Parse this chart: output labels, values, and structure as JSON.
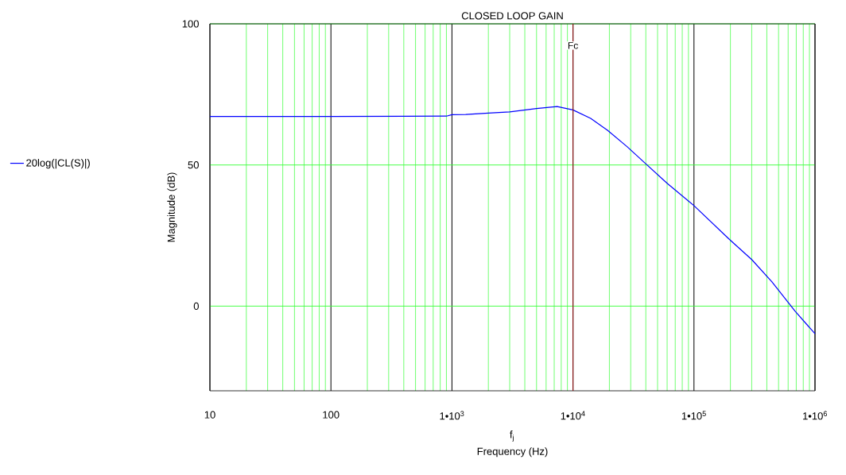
{
  "chart_data": {
    "type": "line",
    "title": "CLOSED LOOP GAIN",
    "xlabel": "Frequency (Hz)",
    "ylabel": "Magnitude (dB)",
    "annotations": [
      "f$_{j}$"
    ],
    "log": "x",
    "xlim": [
      10,
      1000000
    ],
    "ylim": [
      -30,
      100
    ],
    "xticks": [
      10,
      {
        "value": 20,
        "label": null
      },
      {
        "value": 30,
        "label": null
      },
      {
        "value": 40,
        "label": null
      },
      {
        "value": 50,
        "label": null
      },
      {
        "value": 60,
        "label": null
      },
      {
        "value": 70,
        "label": null
      },
      {
        "value": 80,
        "label": null
      },
      {
        "value": 90,
        "label": null
      },
      100,
      {
        "value": 200,
        "label": null
      },
      {
        "value": 300,
        "label": null
      },
      {
        "value": 400,
        "label": null
      },
      {
        "value": 500,
        "label": null
      },
      {
        "value": 600,
        "label": null
      },
      {
        "value": 700,
        "label": null
      },
      {
        "value": 800,
        "label": null
      },
      {
        "value": 900,
        "label": null
      },
      {
        "value": 1000,
        "label": "1•10$^{3}$"
      },
      {
        "value": 2000,
        "label": null
      },
      {
        "value": 3000,
        "label": null
      },
      {
        "value": 4000,
        "label": null
      },
      {
        "value": 5000,
        "label": null
      },
      {
        "value": 6000,
        "label": null
      },
      {
        "value": 7000,
        "label": null
      },
      {
        "value": 8000,
        "label": null
      },
      {
        "value": 9000,
        "label": null
      },
      {
        "value": 10000,
        "label": "1•10$^{4}$"
      },
      {
        "value": 20000,
        "label": null
      },
      {
        "value": 30000,
        "label": null
      },
      {
        "value": 40000,
        "label": null
      },
      {
        "value": 50000,
        "label": null
      },
      {
        "value": 60000,
        "label": null
      },
      {
        "value": 70000,
        "label": null
      },
      {
        "value": 80000,
        "label": null
      },
      {
        "value": 90000,
        "label": null
      },
      {
        "value": 100000,
        "label": "1•10$^{5}$"
      },
      {
        "value": 200000,
        "label": null
      },
      {
        "value": 300000,
        "label": null
      },
      {
        "value": 400000,
        "label": null
      },
      {
        "value": 500000,
        "label": null
      },
      {
        "value": 600000,
        "label": null
      },
      {
        "value": 700000,
        "label": null
      },
      {
        "value": 800000,
        "label": null
      },
      {
        "value": 900000,
        "label": null
      },
      {
        "value": 1000000,
        "label": "1•10$^{6}$"
      }
    ],
    "yticks": [
      0,
      50,
      100
    ],
    "grid": true,
    "legend": "left",
    "ref_lines": [
      {
        "axis": "x",
        "value": 10000,
        "label": "Fc",
        "color": "#8b1a1a"
      }
    ],
    "series": [
      {
        "name": "20log(|CL(S)|)",
        "color": "#0000ff",
        "x": [
          10,
          100,
          900,
          1000,
          1300,
          2000,
          3000,
          5000,
          7400,
          10000,
          14000,
          19300,
          28000,
          39100,
          60000,
          100000,
          196700,
          300000,
          441000,
          686000,
          1000000
        ],
        "values": [
          67.2,
          67.2,
          67.3,
          67.8,
          67.9,
          68.4,
          68.8,
          70.0,
          70.7,
          69.5,
          66.5,
          62.3,
          56.5,
          50.8,
          43.5,
          35.6,
          23.6,
          16.5,
          8.6,
          -1.8,
          -9.8
        ]
      }
    ]
  }
}
